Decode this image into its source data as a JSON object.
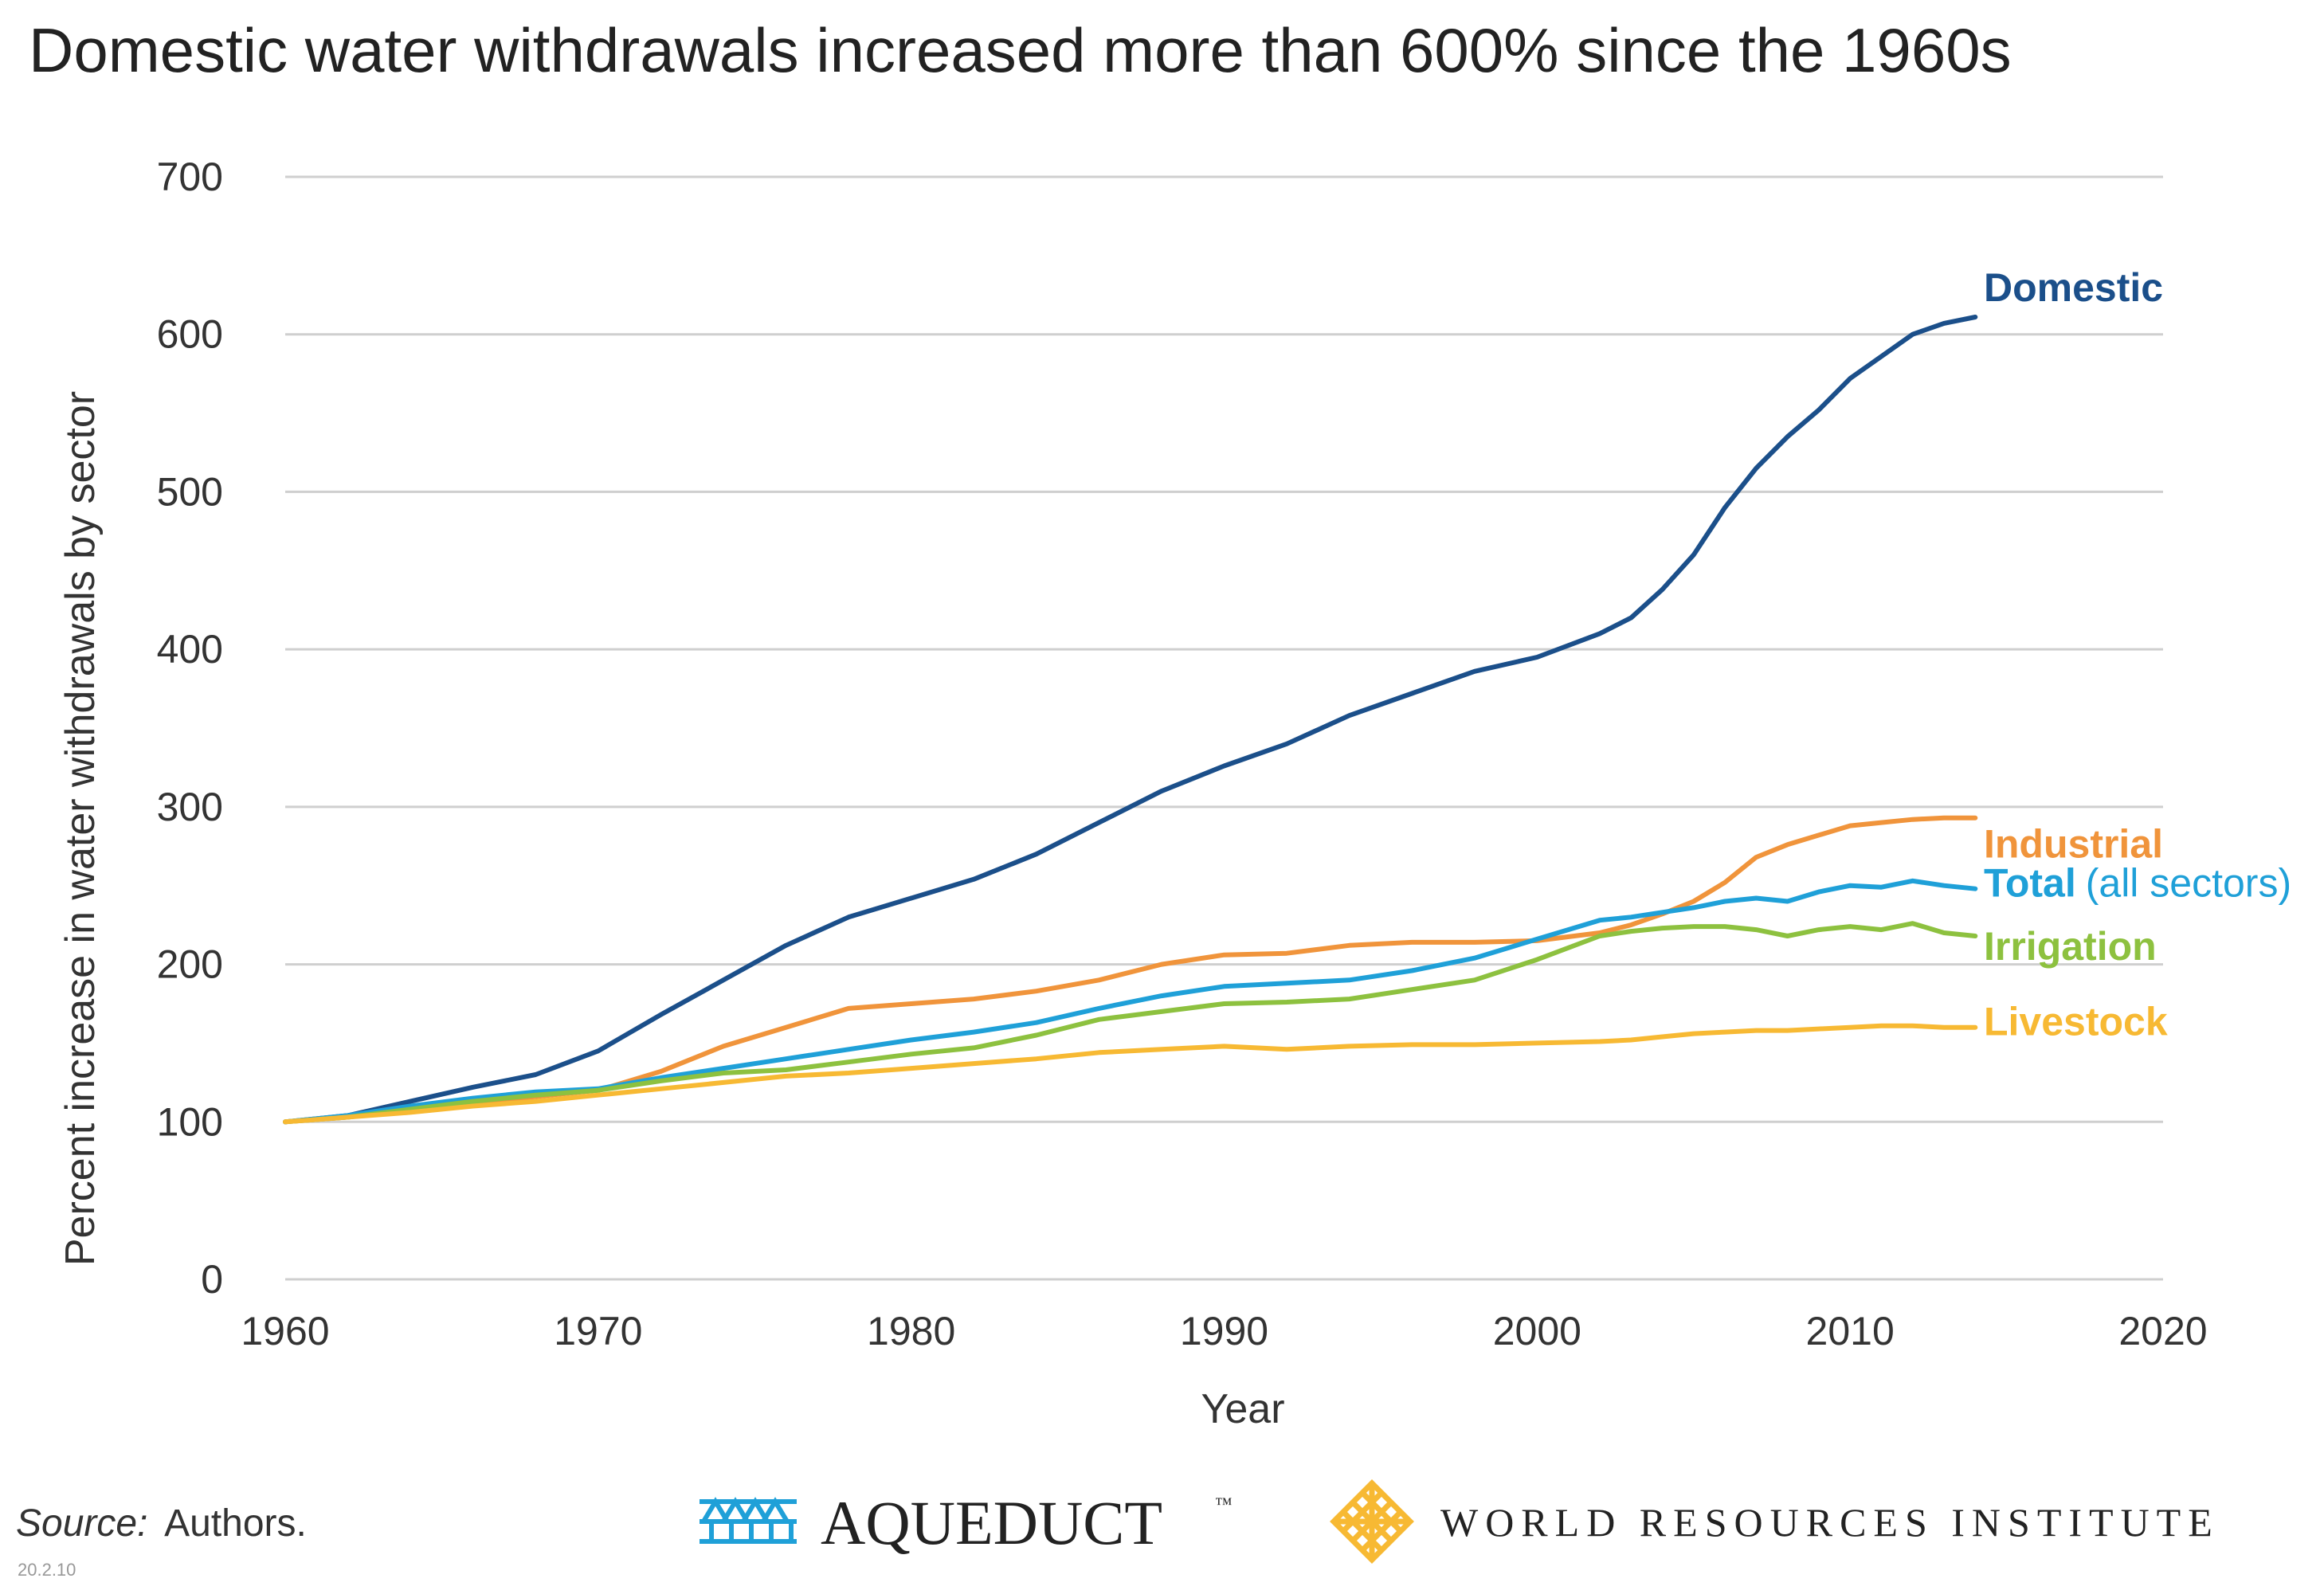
{
  "chart_data": {
    "type": "line",
    "title": "Domestic water withdrawals increased more than 600% since the 1960s",
    "xlabel": "Year",
    "ylabel": "Percent increase in water withdrawals by sector",
    "xlim": [
      1960,
      2020
    ],
    "ylim": [
      0,
      700
    ],
    "x_ticks": [
      "1960",
      "1970",
      "1980",
      "1990",
      "2000",
      "2010",
      "2020"
    ],
    "y_ticks": [
      "0",
      "100",
      "200",
      "300",
      "400",
      "500",
      "600",
      "700"
    ],
    "grid": "horizontal",
    "legend": "direct labels at line ends",
    "x": [
      1960,
      1962,
      1964,
      1966,
      1968,
      1970,
      1972,
      1974,
      1976,
      1978,
      1980,
      1982,
      1984,
      1986,
      1988,
      1990,
      1992,
      1994,
      1996,
      1998,
      2000,
      2002,
      2003,
      2004,
      2005,
      2006,
      2007,
      2008,
      2009,
      2010,
      2011,
      2012,
      2013,
      2014
    ],
    "series": [
      {
        "name": "Domestic",
        "color": "#1b4f8a",
        "values": [
          100,
          104,
          113,
          122,
          130,
          145,
          168,
          190,
          212,
          230,
          242,
          254,
          270,
          290,
          310,
          326,
          340,
          358,
          372,
          386,
          395,
          410,
          420,
          438,
          460,
          490,
          515,
          535,
          552,
          572,
          586,
          600,
          607,
          611
        ]
      },
      {
        "name": "Industrial",
        "color": "#f0943b",
        "values": [
          100,
          103,
          107,
          112,
          116,
          120,
          132,
          148,
          160,
          172,
          175,
          178,
          183,
          190,
          200,
          206,
          207,
          212,
          214,
          214,
          215,
          220,
          225,
          232,
          240,
          252,
          268,
          276,
          282,
          288,
          290,
          292,
          293,
          293
        ]
      },
      {
        "name": "Total",
        "name_detail": "(all sectors)",
        "color": "#1fa0d8",
        "values": [
          100,
          104,
          110,
          115,
          119,
          121,
          128,
          134,
          140,
          146,
          152,
          157,
          163,
          172,
          180,
          186,
          188,
          190,
          196,
          204,
          216,
          228,
          230,
          233,
          236,
          240,
          242,
          240,
          246,
          250,
          249,
          253,
          250,
          248
        ]
      },
      {
        "name": "Irrigation",
        "color": "#8dc13f",
        "values": [
          100,
          103,
          108,
          113,
          117,
          120,
          126,
          131,
          133,
          138,
          143,
          147,
          155,
          165,
          170,
          175,
          176,
          178,
          184,
          190,
          203,
          218,
          221,
          223,
          224,
          224,
          222,
          218,
          222,
          224,
          222,
          226,
          220,
          218
        ]
      },
      {
        "name": "Livestock",
        "color": "#f7b933",
        "values": [
          100,
          103,
          106,
          110,
          113,
          117,
          121,
          125,
          129,
          131,
          134,
          137,
          140,
          144,
          146,
          148,
          146,
          148,
          149,
          149,
          150,
          151,
          152,
          154,
          156,
          157,
          158,
          158,
          159,
          160,
          161,
          161,
          160,
          160
        ]
      }
    ]
  },
  "footer": {
    "source_label": "Source:",
    "source_text": "Authors.",
    "code": "20.2.10"
  },
  "logos": {
    "aqueduct": {
      "text": "AQUEDUCT",
      "tm": "™",
      "color": "#1fa0d8",
      "icon": "aqueduct-icon"
    },
    "wri": {
      "text": "WORLD RESOURCES INSTITUTE",
      "color": "#f7b933",
      "icon": "wri-icon"
    }
  }
}
